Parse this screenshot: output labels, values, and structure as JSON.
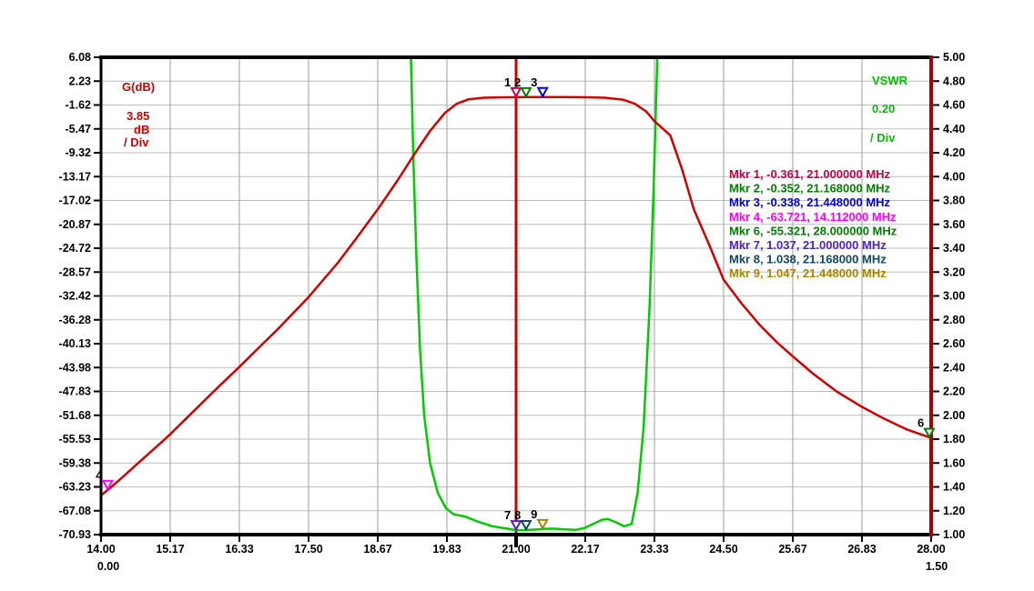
{
  "chart_data": {
    "type": "line",
    "title": "",
    "x_axis": {
      "unit": "MHz",
      "min": 14.0,
      "max": 28.0,
      "tick_labels": [
        "14.00",
        "15.17",
        "16.33",
        "17.50",
        "18.67",
        "19.83",
        "21.00",
        "22.17",
        "23.33",
        "24.50",
        "25.67",
        "26.83",
        "28.00"
      ],
      "tick_values": [
        14.0,
        15.17,
        16.33,
        17.5,
        18.67,
        19.83,
        21.0,
        22.17,
        23.33,
        24.5,
        25.67,
        26.83,
        28.0
      ],
      "secondary_start_label": "0.00",
      "secondary_end_label": "1.50",
      "center_line_freq": 21.0
    },
    "y_left_axis": {
      "title_lines": [
        "G(dB)",
        "3.85",
        "dB",
        "/ Div"
      ],
      "title_color": "#D40000",
      "min": -70.93,
      "max": 6.08,
      "per_div": 3.85,
      "tick_labels": [
        "6.08",
        "2.23",
        "-1.62",
        "-5.47",
        "-9.32",
        "-13.17",
        "-17.02",
        "-20.87",
        "-24.72",
        "-28.57",
        "-32.42",
        "-36.28",
        "-40.13",
        "-43.98",
        "-47.83",
        "-51.68",
        "-55.53",
        "-59.38",
        "-63.23",
        "-67.08",
        "-70.93"
      ]
    },
    "y_right_axis": {
      "title_lines": [
        "VSWR",
        "0.20",
        "/ Div"
      ],
      "title_color": "#00C000",
      "min": 1.0,
      "max": 5.0,
      "per_div": 0.2,
      "tick_labels": [
        "5.00",
        "4.80",
        "4.60",
        "4.40",
        "4.20",
        "4.00",
        "3.80",
        "3.60",
        "3.40",
        "3.20",
        "3.00",
        "2.80",
        "2.60",
        "2.40",
        "2.20",
        "2.00",
        "1.80",
        "1.60",
        "1.40",
        "1.20",
        "1.00"
      ]
    },
    "grid": {
      "on": true,
      "h_color": "#BDBDBD",
      "v_color": "#9E9E9E"
    },
    "frame": {
      "border_color": "#000000",
      "right_border_color": "#AA0000",
      "center_line_color": "#CC0000"
    },
    "series": [
      {
        "name": "gain_db",
        "axis": "left",
        "color": "#D40000",
        "points": [
          [
            14.0,
            -64.6
          ],
          [
            14.112,
            -63.721
          ],
          [
            14.3,
            -62.2
          ],
          [
            14.6,
            -59.6
          ],
          [
            15.0,
            -56.2
          ],
          [
            15.17,
            -54.7
          ],
          [
            15.5,
            -51.6
          ],
          [
            16.0,
            -46.9
          ],
          [
            16.33,
            -43.9
          ],
          [
            16.7,
            -40.4
          ],
          [
            17.0,
            -37.6
          ],
          [
            17.5,
            -32.6
          ],
          [
            18.0,
            -27.0
          ],
          [
            18.3,
            -23.2
          ],
          [
            18.67,
            -18.4
          ],
          [
            19.0,
            -13.8
          ],
          [
            19.3,
            -9.3
          ],
          [
            19.55,
            -5.8
          ],
          [
            19.8,
            -2.9
          ],
          [
            20.0,
            -1.4
          ],
          [
            20.2,
            -0.7
          ],
          [
            20.45,
            -0.45
          ],
          [
            20.7,
            -0.39
          ],
          [
            21.0,
            -0.361
          ],
          [
            21.168,
            -0.352
          ],
          [
            21.448,
            -0.338
          ],
          [
            21.8,
            -0.34
          ],
          [
            22.2,
            -0.37
          ],
          [
            22.5,
            -0.45
          ],
          [
            22.8,
            -0.75
          ],
          [
            23.0,
            -1.4
          ],
          [
            23.2,
            -2.7
          ],
          [
            23.33,
            -4.2
          ],
          [
            23.6,
            -6.5
          ],
          [
            23.8,
            -12.0
          ],
          [
            24.0,
            -18.5
          ],
          [
            24.25,
            -24.0
          ],
          [
            24.5,
            -29.8
          ],
          [
            24.8,
            -33.6
          ],
          [
            25.1,
            -37.0
          ],
          [
            25.4,
            -39.9
          ],
          [
            25.67,
            -42.2
          ],
          [
            26.0,
            -44.9
          ],
          [
            26.4,
            -47.8
          ],
          [
            26.83,
            -50.3
          ],
          [
            27.2,
            -52.2
          ],
          [
            27.6,
            -54.0
          ],
          [
            28.0,
            -55.321
          ]
        ]
      },
      {
        "name": "vswr",
        "axis": "right",
        "color": "#00CC00",
        "points": [
          [
            19.22,
            5.15
          ],
          [
            19.27,
            4.1
          ],
          [
            19.32,
            3.3
          ],
          [
            19.38,
            2.55
          ],
          [
            19.45,
            2.0
          ],
          [
            19.55,
            1.6
          ],
          [
            19.68,
            1.35
          ],
          [
            19.82,
            1.22
          ],
          [
            19.95,
            1.17
          ],
          [
            20.15,
            1.15
          ],
          [
            20.35,
            1.11
          ],
          [
            20.6,
            1.07
          ],
          [
            20.85,
            1.05
          ],
          [
            21.0,
            1.037
          ],
          [
            21.168,
            1.038
          ],
          [
            21.3,
            1.042
          ],
          [
            21.448,
            1.047
          ],
          [
            21.6,
            1.05
          ],
          [
            21.8,
            1.045
          ],
          [
            22.0,
            1.04
          ],
          [
            22.15,
            1.055
          ],
          [
            22.3,
            1.09
          ],
          [
            22.45,
            1.125
          ],
          [
            22.55,
            1.13
          ],
          [
            22.7,
            1.1
          ],
          [
            22.82,
            1.07
          ],
          [
            22.95,
            1.09
          ],
          [
            23.05,
            1.35
          ],
          [
            23.15,
            1.9
          ],
          [
            23.25,
            2.9
          ],
          [
            23.32,
            3.9
          ],
          [
            23.39,
            5.15
          ]
        ]
      }
    ],
    "markers": [
      {
        "id": "1",
        "freq": 21.0,
        "value": -0.361,
        "axis": "left",
        "color": "#CC0044"
      },
      {
        "id": "2",
        "freq": 21.168,
        "value": -0.352,
        "axis": "left",
        "color": "#008000"
      },
      {
        "id": "3",
        "freq": 21.448,
        "value": -0.338,
        "axis": "left",
        "color": "#0000E0"
      },
      {
        "id": "4",
        "freq": 14.112,
        "value": -63.721,
        "axis": "left",
        "color": "#FF00FF"
      },
      {
        "id": "6",
        "freq": 28.0,
        "value": -55.321,
        "axis": "left",
        "color": "#008000"
      },
      {
        "id": "7",
        "freq": 21.0,
        "value": 1.037,
        "axis": "right",
        "color": "#5020D0"
      },
      {
        "id": "8",
        "freq": 21.168,
        "value": 1.038,
        "axis": "right",
        "color": "#11485E"
      },
      {
        "id": "9",
        "freq": 21.448,
        "value": 1.047,
        "axis": "right",
        "color": "#A98500"
      }
    ],
    "marker_number_color": "#000000",
    "legend": {
      "position": "inside-right",
      "entries": [
        {
          "text": "Mkr 1, -0.361, 21.000000 MHz",
          "color": "#CC0044"
        },
        {
          "text": "Mkr 2, -0.352, 21.168000 MHz",
          "color": "#008000"
        },
        {
          "text": "Mkr 3, -0.338, 21.448000 MHz",
          "color": "#0000E0"
        },
        {
          "text": "Mkr 4, -63.721, 14.112000 MHz",
          "color": "#FF00FF"
        },
        {
          "text": "Mkr 6, -55.321, 28.000000 MHz",
          "color": "#008000"
        },
        {
          "text": "Mkr 7, 1.037, 21.000000 MHz",
          "color": "#5020D0"
        },
        {
          "text": "Mkr 8, 1.038, 21.168000 MHz",
          "color": "#11485E"
        },
        {
          "text": "Mkr 9, 1.047, 21.448000 MHz",
          "color": "#A98500"
        }
      ]
    }
  }
}
